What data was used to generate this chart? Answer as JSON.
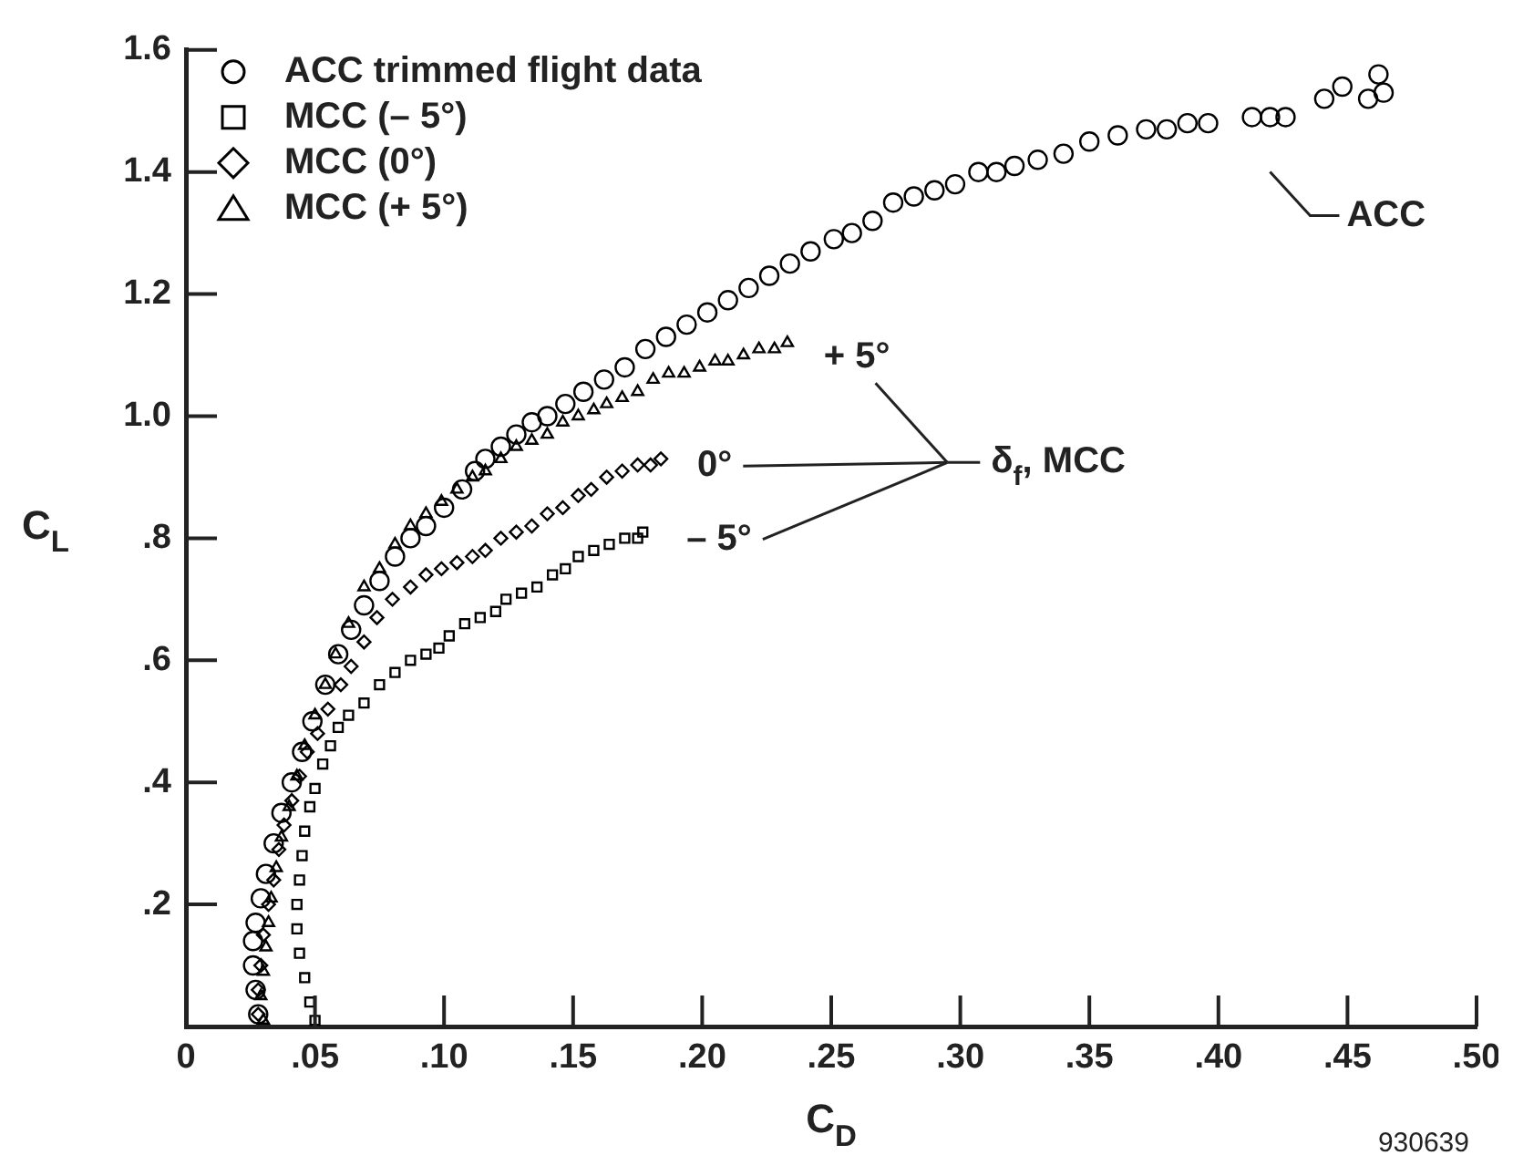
{
  "chart_data": {
    "type": "scatter",
    "xlabel": "C$_{D}$",
    "ylabel": "C$_{L}$",
    "xlim": [
      0,
      0.5
    ],
    "ylim": [
      0,
      1.6
    ],
    "xticks": [
      0,
      {
        "value": 0.05,
        "label": ".05"
      },
      {
        "value": 0.1,
        "label": ".10"
      },
      {
        "value": 0.15,
        "label": ".15"
      },
      {
        "value": 0.2,
        "label": ".20"
      },
      {
        "value": 0.25,
        "label": ".25"
      },
      {
        "value": 0.3,
        "label": ".30"
      },
      {
        "value": 0.35,
        "label": ".35"
      },
      {
        "value": 0.4,
        "label": ".40"
      },
      {
        "value": 0.45,
        "label": ".45"
      },
      {
        "value": 0.5,
        "label": ".50"
      }
    ],
    "yticks": [
      {
        "value": 0.2,
        "label": ".2"
      },
      {
        "value": 0.4,
        "label": ".4"
      },
      {
        "value": 0.6,
        "label": ".6"
      },
      {
        "value": 0.8,
        "label": ".8"
      },
      {
        "value": 1.0,
        "label": "1.0"
      },
      {
        "value": 1.2,
        "label": "1.2"
      },
      {
        "value": 1.4,
        "label": "1.4"
      },
      {
        "value": 1.6,
        "label": "1.6"
      }
    ],
    "legend": "top left",
    "grid": false,
    "series": [
      {
        "name": "ACC trimmed flight data",
        "color": "#000000",
        "marker": "circle",
        "x": [
          0.028,
          0.027,
          0.026,
          0.026,
          0.027,
          0.029,
          0.031,
          0.034,
          0.037,
          0.041,
          0.045,
          0.049,
          0.054,
          0.059,
          0.064,
          0.069,
          0.075,
          0.081,
          0.087,
          0.093,
          0.1,
          0.107,
          0.112,
          0.116,
          0.122,
          0.128,
          0.134,
          0.14,
          0.147,
          0.154,
          0.162,
          0.17,
          0.178,
          0.186,
          0.194,
          0.202,
          0.21,
          0.218,
          0.226,
          0.234,
          0.242,
          0.251,
          0.258,
          0.266,
          0.274,
          0.282,
          0.29,
          0.298,
          0.307,
          0.314,
          0.321,
          0.33,
          0.34,
          0.35,
          0.361,
          0.372,
          0.38,
          0.388,
          0.396,
          0.413,
          0.42,
          0.426,
          0.441,
          0.448,
          0.458,
          0.462,
          0.464
        ],
        "values": [
          0.02,
          0.06,
          0.1,
          0.14,
          0.17,
          0.21,
          0.25,
          0.3,
          0.35,
          0.4,
          0.45,
          0.5,
          0.56,
          0.61,
          0.65,
          0.69,
          0.73,
          0.77,
          0.8,
          0.82,
          0.85,
          0.88,
          0.91,
          0.93,
          0.95,
          0.97,
          0.99,
          1.0,
          1.02,
          1.04,
          1.06,
          1.08,
          1.11,
          1.13,
          1.15,
          1.17,
          1.19,
          1.21,
          1.23,
          1.25,
          1.27,
          1.29,
          1.3,
          1.32,
          1.35,
          1.36,
          1.37,
          1.38,
          1.4,
          1.4,
          1.41,
          1.42,
          1.43,
          1.45,
          1.46,
          1.47,
          1.47,
          1.48,
          1.48,
          1.49,
          1.49,
          1.49,
          1.52,
          1.54,
          1.52,
          1.56,
          1.53
        ]
      },
      {
        "name": "MCC (– 5°)",
        "color": "#000000",
        "marker": "square",
        "x": [
          0.05,
          0.048,
          0.046,
          0.044,
          0.043,
          0.043,
          0.044,
          0.045,
          0.046,
          0.048,
          0.05,
          0.053,
          0.056,
          0.059,
          0.063,
          0.069,
          0.075,
          0.081,
          0.087,
          0.093,
          0.098,
          0.102,
          0.108,
          0.114,
          0.12,
          0.124,
          0.13,
          0.136,
          0.142,
          0.147,
          0.152,
          0.158,
          0.164,
          0.17,
          0.175,
          0.177
        ],
        "values": [
          0.01,
          0.04,
          0.08,
          0.12,
          0.16,
          0.2,
          0.24,
          0.28,
          0.32,
          0.36,
          0.39,
          0.43,
          0.46,
          0.49,
          0.51,
          0.53,
          0.56,
          0.58,
          0.6,
          0.61,
          0.62,
          0.64,
          0.66,
          0.67,
          0.68,
          0.7,
          0.71,
          0.72,
          0.74,
          0.75,
          0.77,
          0.78,
          0.79,
          0.8,
          0.8,
          0.81
        ]
      },
      {
        "name": "MCC (0°)",
        "color": "#000000",
        "marker": "diamond",
        "x": [
          0.028,
          0.028,
          0.029,
          0.03,
          0.032,
          0.034,
          0.036,
          0.038,
          0.041,
          0.044,
          0.047,
          0.051,
          0.055,
          0.06,
          0.064,
          0.069,
          0.074,
          0.08,
          0.087,
          0.093,
          0.099,
          0.105,
          0.111,
          0.116,
          0.122,
          0.128,
          0.134,
          0.14,
          0.146,
          0.152,
          0.157,
          0.163,
          0.169,
          0.175,
          0.18,
          0.184
        ],
        "values": [
          0.02,
          0.06,
          0.1,
          0.15,
          0.2,
          0.24,
          0.29,
          0.33,
          0.37,
          0.41,
          0.45,
          0.48,
          0.52,
          0.56,
          0.59,
          0.63,
          0.67,
          0.7,
          0.72,
          0.74,
          0.75,
          0.76,
          0.77,
          0.78,
          0.8,
          0.81,
          0.82,
          0.84,
          0.85,
          0.87,
          0.88,
          0.9,
          0.91,
          0.92,
          0.92,
          0.93
        ]
      },
      {
        "name": "MCC (+ 5°)",
        "color": "#000000",
        "marker": "triangle",
        "x": [
          0.03,
          0.029,
          0.03,
          0.031,
          0.032,
          0.033,
          0.035,
          0.037,
          0.04,
          0.043,
          0.046,
          0.05,
          0.054,
          0.058,
          0.063,
          0.069,
          0.075,
          0.081,
          0.087,
          0.093,
          0.099,
          0.105,
          0.111,
          0.116,
          0.122,
          0.128,
          0.134,
          0.14,
          0.146,
          0.152,
          0.158,
          0.163,
          0.169,
          0.175,
          0.181,
          0.187,
          0.193,
          0.199,
          0.205,
          0.21,
          0.216,
          0.222,
          0.228,
          0.233
        ],
        "values": [
          0.01,
          0.05,
          0.09,
          0.13,
          0.17,
          0.21,
          0.26,
          0.31,
          0.36,
          0.41,
          0.46,
          0.51,
          0.56,
          0.61,
          0.66,
          0.72,
          0.75,
          0.79,
          0.82,
          0.84,
          0.86,
          0.88,
          0.9,
          0.91,
          0.93,
          0.95,
          0.96,
          0.97,
          0.99,
          1.0,
          1.01,
          1.02,
          1.03,
          1.04,
          1.06,
          1.07,
          1.07,
          1.08,
          1.09,
          1.09,
          1.1,
          1.11,
          1.11,
          1.12
        ]
      }
    ],
    "annotations": [
      {
        "text": "ACC",
        "x": 0.42,
        "y": 1.46
      },
      {
        "text": "+ 5°",
        "x": 0.233,
        "y": 1.12
      },
      {
        "text": "0°",
        "x": 0.184,
        "y": 0.93
      },
      {
        "text": "– 5°",
        "x": 0.177,
        "y": 0.81
      },
      "δ$_{f}$, MCC",
      "930639"
    ]
  }
}
